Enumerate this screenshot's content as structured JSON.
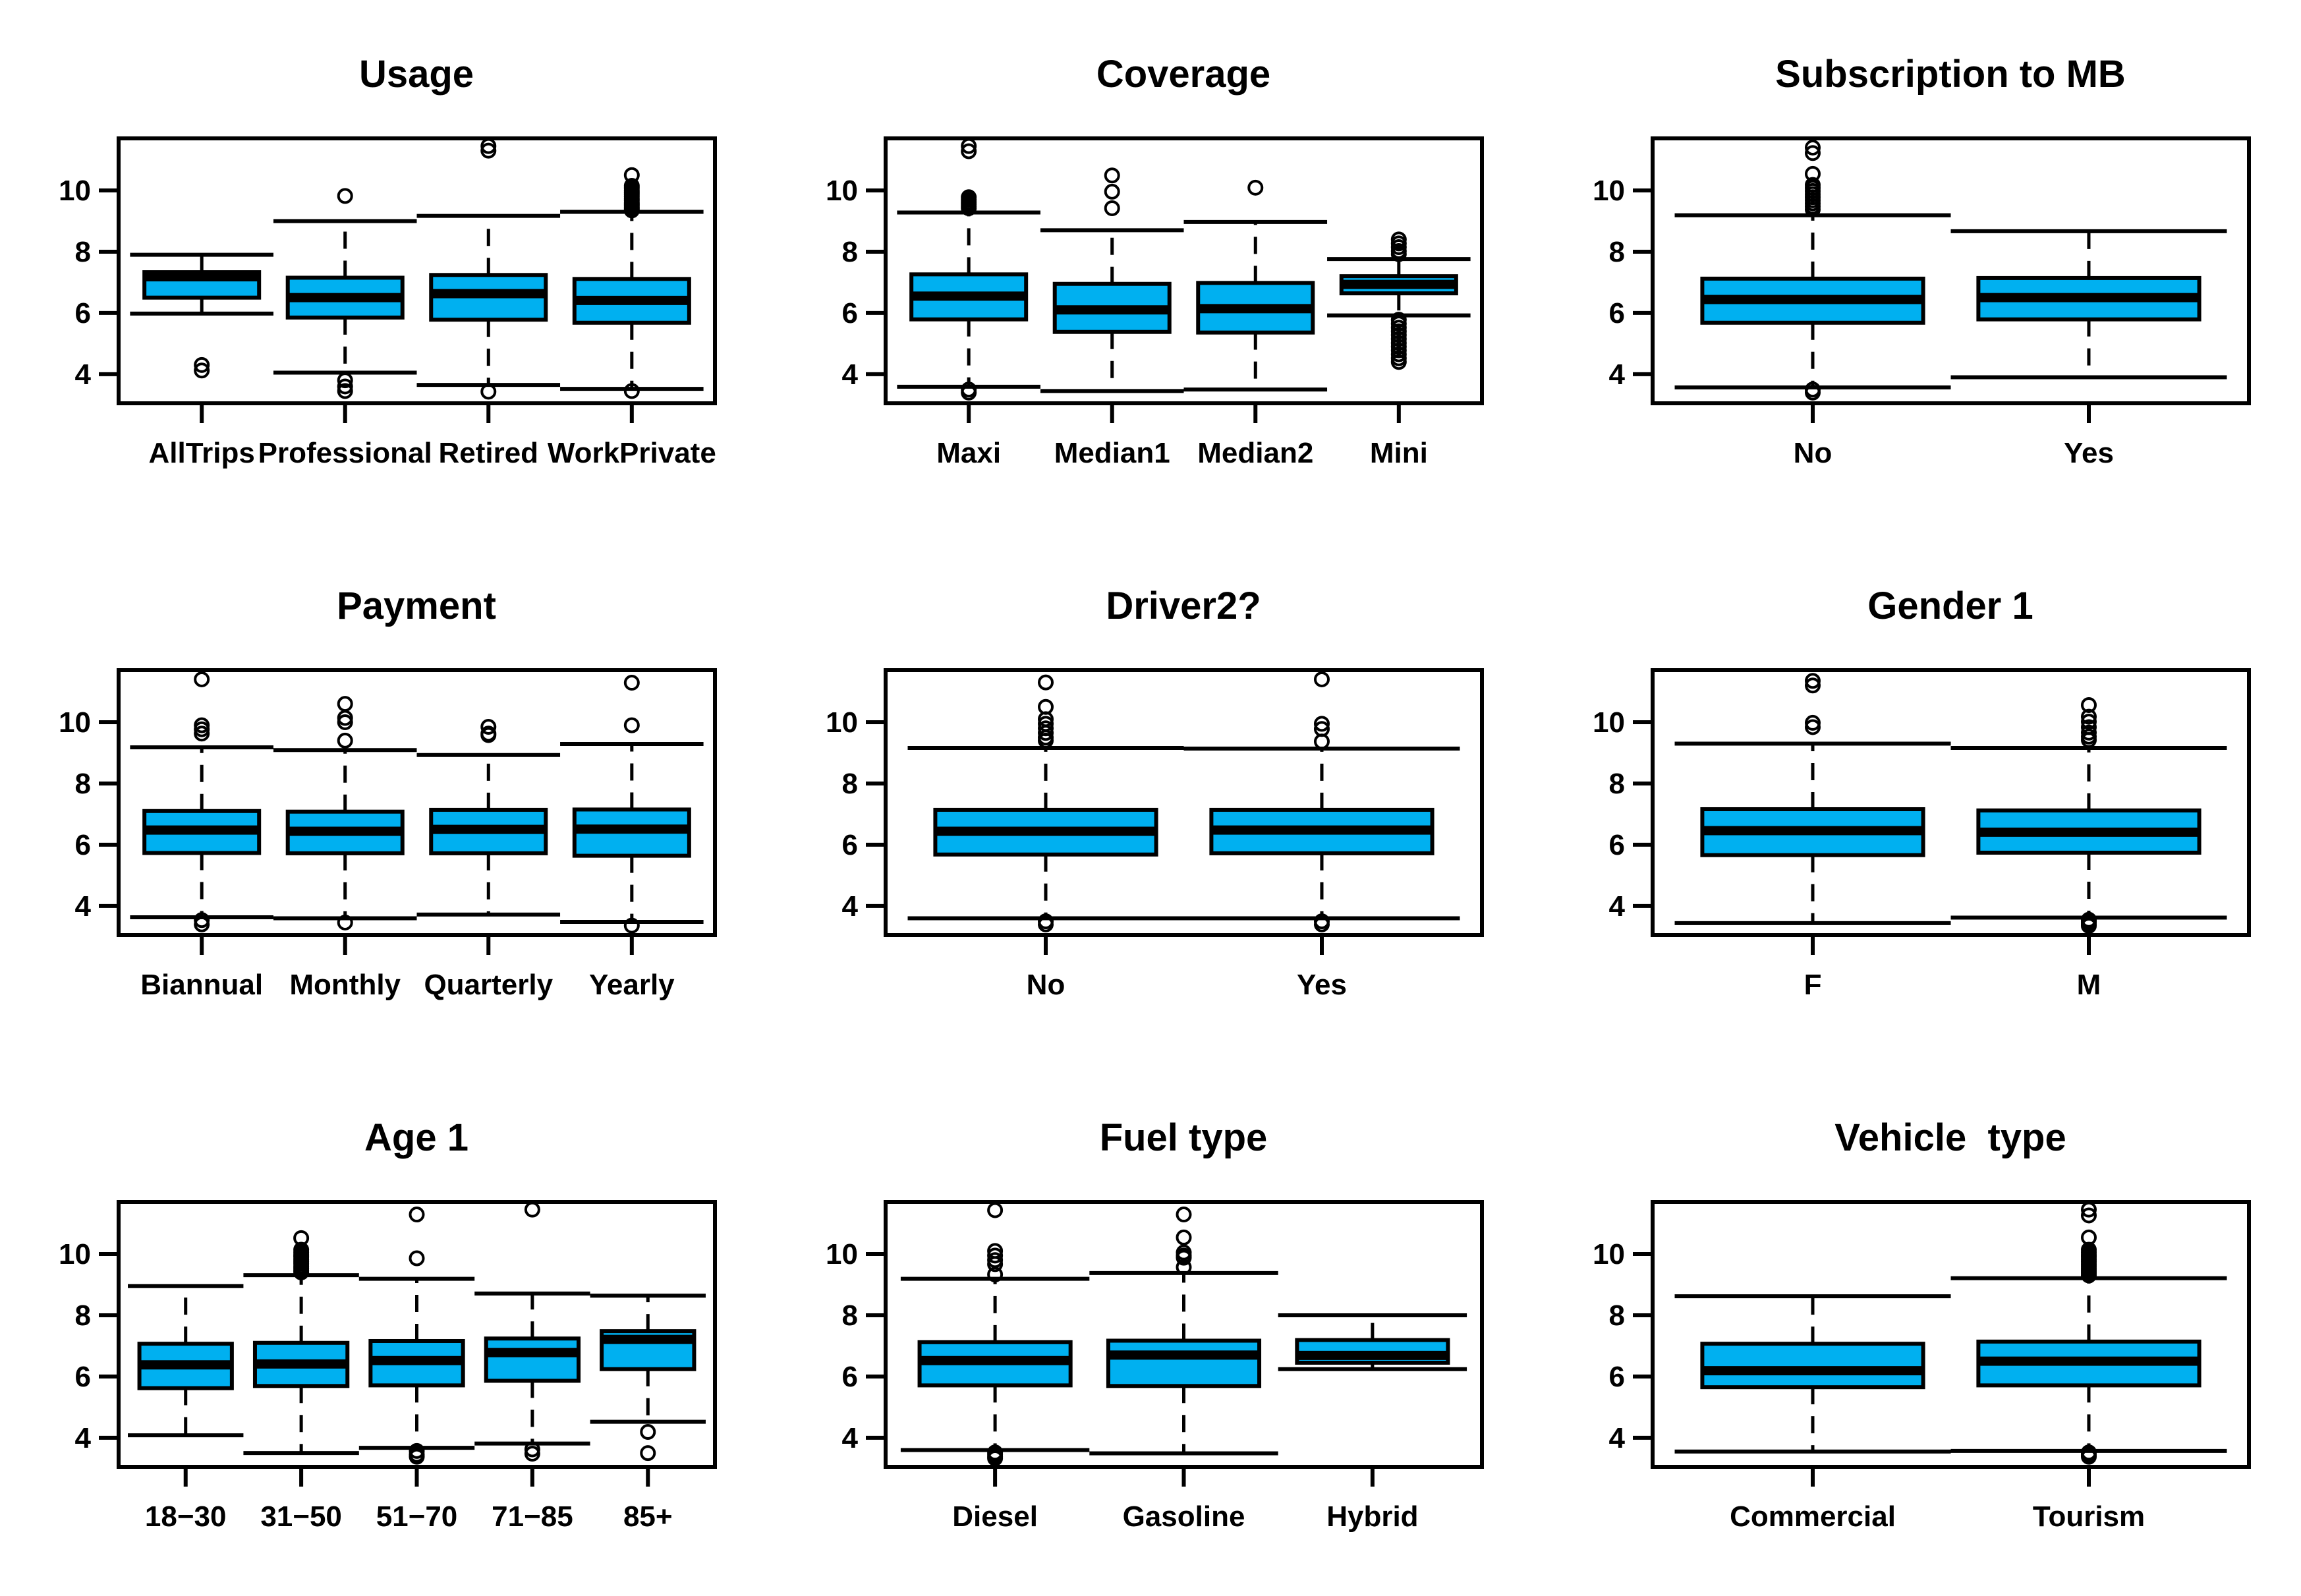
{
  "figure": {
    "background": "#ffffff",
    "grid": {
      "rows": 3,
      "cols": 3
    }
  },
  "style": {
    "box_fill": "#00B0F0",
    "line_color": "#000000",
    "background": "#ffffff"
  },
  "chart_data": [
    {
      "type": "boxplot",
      "title": "Usage",
      "ylim": [
        3.05,
        11.7
      ],
      "yticks": [
        4,
        6,
        8,
        10
      ],
      "categories": [
        "AllTrips",
        "Professional",
        "Retired",
        "WorkPrivate"
      ],
      "boxes": [
        {
          "label": "AllTrips",
          "whislo": 5.98,
          "q1": 6.5,
          "med": 7.18,
          "q3": 7.33,
          "whishi": 7.9,
          "outliers": [
            4.3,
            4.12
          ]
        },
        {
          "label": "Professional",
          "whislo": 4.05,
          "q1": 5.85,
          "med": 6.5,
          "q3": 7.15,
          "whishi": 9.0,
          "outliers": [
            9.82,
            3.8,
            3.6,
            3.45
          ]
        },
        {
          "label": "Retired",
          "whislo": 3.65,
          "q1": 5.78,
          "med": 6.63,
          "q3": 7.24,
          "whishi": 9.17,
          "outliers": [
            11.45,
            11.3,
            3.43
          ]
        },
        {
          "label": "WorkPrivate",
          "whislo": 3.52,
          "q1": 5.68,
          "med": 6.41,
          "q3": 7.11,
          "whishi": 9.3,
          "outliers": [
            10.5,
            10.15,
            10.08,
            10.0,
            9.93,
            9.87,
            9.8,
            9.73,
            9.67,
            9.6,
            9.55,
            9.5,
            9.45,
            9.4,
            9.35,
            3.45
          ]
        }
      ]
    },
    {
      "type": "boxplot",
      "title": "Coverage",
      "ylim": [
        3.05,
        11.7
      ],
      "yticks": [
        4,
        6,
        8,
        10
      ],
      "categories": [
        "Maxi",
        "Median1",
        "Median2",
        "Mini"
      ],
      "boxes": [
        {
          "label": "Maxi",
          "whislo": 3.59,
          "q1": 5.79,
          "med": 6.55,
          "q3": 7.26,
          "whishi": 9.28,
          "outliers": [
            11.45,
            11.28,
            9.78,
            9.7,
            9.62,
            9.55,
            9.48,
            9.42,
            3.5,
            3.4
          ]
        },
        {
          "label": "Median1",
          "whislo": 3.45,
          "q1": 5.38,
          "med": 6.1,
          "q3": 6.95,
          "whishi": 8.7,
          "outliers": [
            10.49,
            9.96,
            9.42
          ]
        },
        {
          "label": "Median2",
          "whislo": 3.5,
          "q1": 5.36,
          "med": 6.14,
          "q3": 6.98,
          "whishi": 8.97,
          "outliers": [
            10.09
          ]
        },
        {
          "label": "Mini",
          "whislo": 5.92,
          "q1": 6.64,
          "med": 6.93,
          "q3": 7.2,
          "whishi": 7.76,
          "outliers": [
            8.4,
            8.27,
            8.15,
            8.02,
            7.92,
            5.78,
            5.65,
            5.52,
            5.4,
            5.28,
            5.15,
            5.02,
            4.9,
            4.78,
            4.65,
            4.52,
            4.4
          ]
        }
      ]
    },
    {
      "type": "boxplot",
      "title": "Subscription to MB",
      "ylim": [
        3.05,
        11.7
      ],
      "yticks": [
        4,
        6,
        8,
        10
      ],
      "categories": [
        "No",
        "Yes"
      ],
      "boxes": [
        {
          "label": "No",
          "whislo": 3.57,
          "q1": 5.68,
          "med": 6.44,
          "q3": 7.12,
          "whishi": 9.19,
          "outliers": [
            11.4,
            11.22,
            10.54,
            10.18,
            10.08,
            9.98,
            9.88,
            9.78,
            9.68,
            9.58,
            9.48,
            9.38,
            3.5,
            3.4
          ]
        },
        {
          "label": "Yes",
          "whislo": 3.9,
          "q1": 5.79,
          "med": 6.5,
          "q3": 7.14,
          "whishi": 8.67,
          "outliers": []
        }
      ]
    },
    {
      "type": "boxplot",
      "title": "Payment",
      "ylim": [
        3.05,
        11.7
      ],
      "yticks": [
        4,
        6,
        8,
        10
      ],
      "categories": [
        "Biannual",
        "Monthly",
        "Quarterly",
        "Yearly"
      ],
      "boxes": [
        {
          "label": "Biannual",
          "whislo": 3.63,
          "q1": 5.73,
          "med": 6.48,
          "q3": 7.1,
          "whishi": 9.18,
          "outliers": [
            11.4,
            9.9,
            9.77,
            9.63,
            3.54,
            3.4
          ]
        },
        {
          "label": "Monthly",
          "whislo": 3.6,
          "q1": 5.72,
          "med": 6.44,
          "q3": 7.08,
          "whishi": 9.09,
          "outliers": [
            10.6,
            10.14,
            10.0,
            9.4,
            3.46
          ]
        },
        {
          "label": "Quarterly",
          "whislo": 3.72,
          "q1": 5.72,
          "med": 6.5,
          "q3": 7.14,
          "whishi": 8.93,
          "outliers": [
            9.85,
            9.63,
            9.58
          ]
        },
        {
          "label": "Yearly",
          "whislo": 3.48,
          "q1": 5.64,
          "med": 6.51,
          "q3": 7.15,
          "whishi": 9.29,
          "outliers": [
            11.29,
            9.9,
            3.36
          ]
        }
      ]
    },
    {
      "type": "boxplot",
      "title": "Driver2?",
      "ylim": [
        3.05,
        11.7
      ],
      "yticks": [
        4,
        6,
        8,
        10
      ],
      "categories": [
        "No",
        "Yes"
      ],
      "boxes": [
        {
          "label": "No",
          "whislo": 3.6,
          "q1": 5.68,
          "med": 6.44,
          "q3": 7.14,
          "whishi": 9.16,
          "outliers": [
            11.3,
            10.5,
            10.1,
            9.95,
            9.8,
            9.65,
            9.5,
            9.4,
            3.5,
            3.4
          ]
        },
        {
          "label": "Yes",
          "whislo": 3.6,
          "q1": 5.72,
          "med": 6.48,
          "q3": 7.14,
          "whishi": 9.14,
          "outliers": [
            11.4,
            9.95,
            9.78,
            9.37,
            3.5,
            3.4
          ]
        }
      ]
    },
    {
      "type": "boxplot",
      "title": "Gender 1",
      "ylim": [
        3.05,
        11.7
      ],
      "yticks": [
        4,
        6,
        8,
        10
      ],
      "categories": [
        "F",
        "M"
      ],
      "boxes": [
        {
          "label": "F",
          "whislo": 3.44,
          "q1": 5.66,
          "med": 6.46,
          "q3": 7.16,
          "whishi": 9.3,
          "outliers": [
            11.35,
            11.2,
            9.98,
            9.84
          ]
        },
        {
          "label": "M",
          "whislo": 3.62,
          "q1": 5.74,
          "med": 6.41,
          "q3": 7.12,
          "whishi": 9.16,
          "outliers": [
            10.56,
            10.18,
            10.02,
            9.84,
            9.66,
            9.53,
            9.42,
            3.55,
            3.5,
            3.45,
            3.4,
            3.35
          ]
        }
      ]
    },
    {
      "type": "boxplot",
      "title": "Age 1",
      "ylim": [
        3.05,
        11.7
      ],
      "yticks": [
        4,
        6,
        8,
        10
      ],
      "categories": [
        "18−30",
        "31−50",
        "51−70",
        "71−85",
        "85+"
      ],
      "boxes": [
        {
          "label": "18−30",
          "whislo": 4.08,
          "q1": 5.62,
          "med": 6.38,
          "q3": 7.07,
          "whishi": 8.95,
          "outliers": []
        },
        {
          "label": "31−50",
          "whislo": 3.5,
          "q1": 5.69,
          "med": 6.41,
          "q3": 7.1,
          "whishi": 9.31,
          "outliers": [
            10.52,
            10.14,
            10.05,
            9.97,
            9.9,
            9.82,
            9.75,
            9.68,
            9.6,
            9.53,
            9.46,
            9.4
          ]
        },
        {
          "label": "51−70",
          "whislo": 3.67,
          "q1": 5.71,
          "med": 6.52,
          "q3": 7.16,
          "whishi": 9.19,
          "outliers": [
            11.29,
            9.86,
            3.57,
            3.45,
            3.38
          ]
        },
        {
          "label": "71−85",
          "whislo": 3.81,
          "q1": 5.86,
          "med": 6.78,
          "q3": 7.24,
          "whishi": 8.71,
          "outliers": [
            11.45,
            3.62,
            3.48
          ]
        },
        {
          "label": "85+",
          "whislo": 4.52,
          "q1": 6.24,
          "med": 7.21,
          "q3": 7.48,
          "whishi": 8.64,
          "outliers": [
            4.19,
            3.5
          ]
        }
      ]
    },
    {
      "type": "boxplot",
      "title": "Fuel type",
      "ylim": [
        3.05,
        11.7
      ],
      "yticks": [
        4,
        6,
        8,
        10
      ],
      "categories": [
        "Diesel",
        "Gasoline",
        "Hybrid"
      ],
      "boxes": [
        {
          "label": "Diesel",
          "whislo": 3.6,
          "q1": 5.71,
          "med": 6.52,
          "q3": 7.12,
          "whishi": 9.19,
          "outliers": [
            11.43,
            10.1,
            9.95,
            9.8,
            9.67,
            9.33,
            3.52,
            3.45,
            3.38,
            3.33
          ]
        },
        {
          "label": "Gasoline",
          "whislo": 3.49,
          "q1": 5.69,
          "med": 6.7,
          "q3": 7.17,
          "whishi": 9.38,
          "outliers": [
            11.29,
            10.54,
            10.05,
            9.95,
            9.88,
            9.57
          ]
        },
        {
          "label": "Hybrid",
          "whislo": 6.24,
          "q1": 6.45,
          "med": 6.69,
          "q3": 7.19,
          "whishi": 8.0,
          "outliers": []
        }
      ]
    },
    {
      "type": "boxplot",
      "title": "Vehicle  type",
      "ylim": [
        3.05,
        11.7
      ],
      "yticks": [
        4,
        6,
        8,
        10
      ],
      "categories": [
        "Commercial",
        "Tourism"
      ],
      "boxes": [
        {
          "label": "Commercial",
          "whislo": 3.55,
          "q1": 5.65,
          "med": 6.19,
          "q3": 7.07,
          "whishi": 8.62,
          "outliers": []
        },
        {
          "label": "Tourism",
          "whislo": 3.57,
          "q1": 5.71,
          "med": 6.5,
          "q3": 7.14,
          "whishi": 9.21,
          "outliers": [
            11.45,
            11.26,
            10.54,
            10.14,
            10.05,
            9.97,
            9.9,
            9.82,
            9.75,
            9.67,
            9.6,
            9.52,
            9.45,
            9.38,
            9.3,
            3.52,
            3.44,
            3.38
          ]
        }
      ]
    }
  ]
}
